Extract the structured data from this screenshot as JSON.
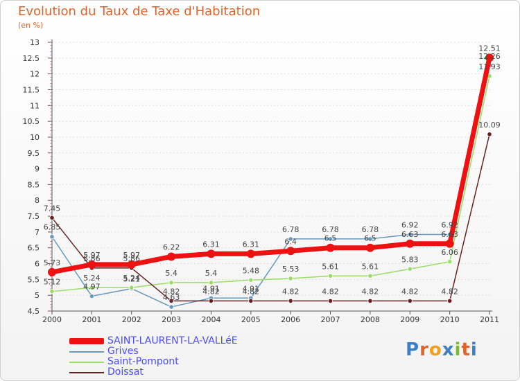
{
  "page": {
    "title": "Evolution du Taux de Taxe d'Habitation",
    "subtitle": "(en %)",
    "logo": "Proxiti"
  },
  "colors": {
    "SAINT-LAURENT-LA-VALLéE": "#ee1111",
    "Grives": "#6699bb",
    "Saint-Pompont": "#99dd66",
    "Doissat": "#662222",
    "title": "#e0632b",
    "legend_text": "#4a4aff"
  },
  "chart_data": {
    "type": "line",
    "title": "Evolution du Taux de Taxe d'Habitation",
    "ylabel": "(en %)",
    "xlabel": "",
    "x": [
      "2000",
      "2001",
      "2002",
      "2003",
      "2004",
      "2005",
      "2006",
      "2007",
      "2008",
      "2009",
      "2010",
      "2011"
    ],
    "ylim": [
      4.5,
      13
    ],
    "yticks": [
      4.5,
      5,
      5.5,
      6,
      6.5,
      7,
      7.5,
      8,
      8.5,
      9,
      9.5,
      10,
      10.5,
      11,
      11.5,
      12,
      12.5,
      13
    ],
    "series": [
      {
        "name": "SAINT-LAURENT-LA-VALLéE",
        "values": [
          5.73,
          5.97,
          5.97,
          6.22,
          6.31,
          6.31,
          6.4,
          6.5,
          6.5,
          6.63,
          6.63,
          12.51
        ],
        "labels": [
          "5.73",
          "5.97",
          "5.97",
          "6.22",
          "6.31",
          "6.31",
          "6.4",
          "6.5",
          "6.5",
          "6.63",
          "6.63",
          "12.51"
        ]
      },
      {
        "name": "Grives",
        "values": [
          6.85,
          4.97,
          5.21,
          4.63,
          4.91,
          4.91,
          6.78,
          6.78,
          6.78,
          6.92,
          6.92,
          12.26
        ],
        "labels": [
          "6.85",
          "4.97",
          "5.21",
          "4.63",
          "4.91",
          "4.91",
          "6.78",
          "6.78",
          "6.78",
          "6.92",
          "6.92",
          "12.26"
        ]
      },
      {
        "name": "Saint-Pompont",
        "values": [
          5.12,
          5.24,
          5.24,
          5.4,
          5.4,
          5.48,
          5.53,
          5.61,
          5.61,
          5.83,
          6.06,
          11.93
        ],
        "labels": [
          "5.12",
          "5.24",
          "5.24",
          "5.4",
          "5.4",
          "5.48",
          "5.53",
          "5.61",
          "5.61",
          "5.83",
          "6.06",
          "11.93"
        ]
      },
      {
        "name": "Doissat",
        "values": [
          7.45,
          5.86,
          5.86,
          4.82,
          4.82,
          4.82,
          4.82,
          4.82,
          4.82,
          4.82,
          4.82,
          10.09
        ],
        "labels": [
          "7.45",
          "5.86",
          "5.86",
          "4.82",
          "4.82",
          "4.82",
          "4.82",
          "4.82",
          "4.82",
          "4.82",
          "4.82",
          "10.09"
        ]
      }
    ],
    "legend": [
      "SAINT-LAURENT-LA-VALLéE",
      "Grives",
      "Saint-Pompont",
      "Doissat"
    ]
  }
}
